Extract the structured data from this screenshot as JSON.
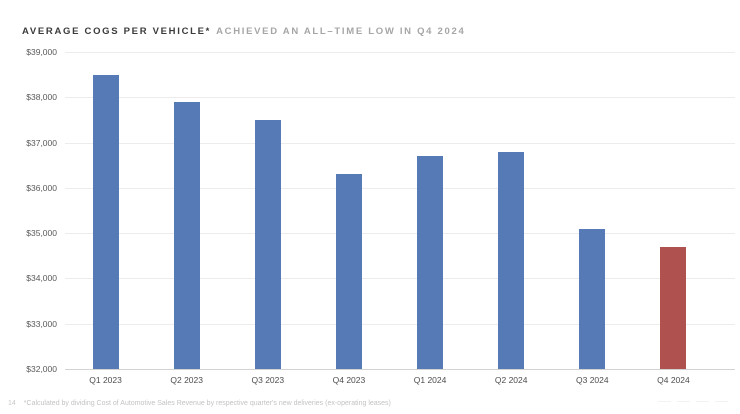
{
  "slide": {
    "title_primary": "AVERAGE COGS PER VEHICLE*",
    "title_secondary": "ACHIEVED AN ALL–TIME LOW IN Q4 2024",
    "page_number": "14",
    "footnote": "*Calculated by dividing Cost of Automotive Sales Revenue by respective quarter's new deliveries (ex-operating leases)"
  },
  "chart_data": {
    "type": "bar",
    "title": "AVERAGE COGS PER VEHICLE* ACHIEVED AN ALL–TIME LOW IN Q4 2024",
    "categories": [
      "Q1 2023",
      "Q2 2023",
      "Q3 2023",
      "Q4 2023",
      "Q1 2024",
      "Q2 2024",
      "Q3 2024",
      "Q4 2024"
    ],
    "values": [
      38500,
      37900,
      37500,
      36300,
      36700,
      36800,
      35100,
      34700
    ],
    "xlabel": "",
    "ylabel": "",
    "ylim": [
      32000,
      39000
    ],
    "ytick_step": 1000,
    "ytick_labels": [
      "$32,000",
      "$33,000",
      "$34,000",
      "$35,000",
      "$36,000",
      "$37,000",
      "$38,000",
      "$39,000"
    ],
    "grid": true,
    "legend": "none",
    "bar_color_default": "#567AB5",
    "bar_color_highlight": "#AF514E",
    "highlight_category": "Q4 2024"
  },
  "colors": {
    "background": "#FFFFFF",
    "title_primary": "#3B3B3B",
    "title_secondary": "#A6A6A6",
    "gridline": "#ECECEC",
    "axis_baseline": "#D2D2D2",
    "tick_label": "#595959",
    "footnote": "#C3C3C3"
  }
}
